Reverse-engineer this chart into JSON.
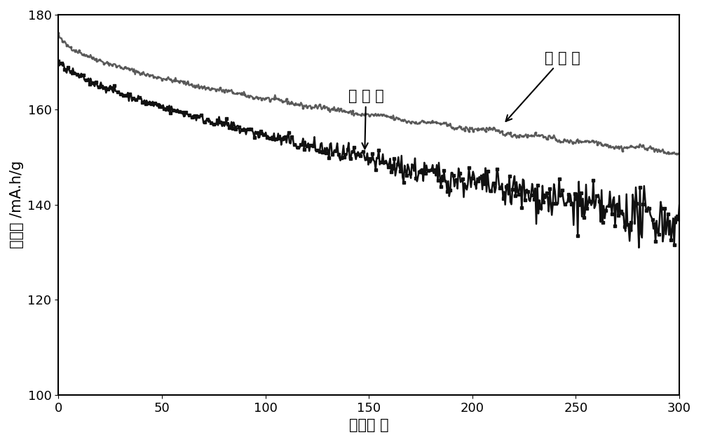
{
  "title": "",
  "xlabel": "循环次 数",
  "ylabel": "克容量 /mA.h/g",
  "xlim": [
    0,
    300
  ],
  "ylim": [
    100,
    180
  ],
  "yticks": [
    100,
    120,
    140,
    160,
    180
  ],
  "xticks": [
    0,
    50,
    100,
    150,
    200,
    250,
    300
  ],
  "label_shili": "实 施 例",
  "label_duibi": "对 比 例",
  "shili_color": "#555555",
  "duibi_color": "#111111",
  "background_color": "#ffffff",
  "fontsize_label": 15,
  "fontsize_tick": 13,
  "fontsize_annotation": 15
}
